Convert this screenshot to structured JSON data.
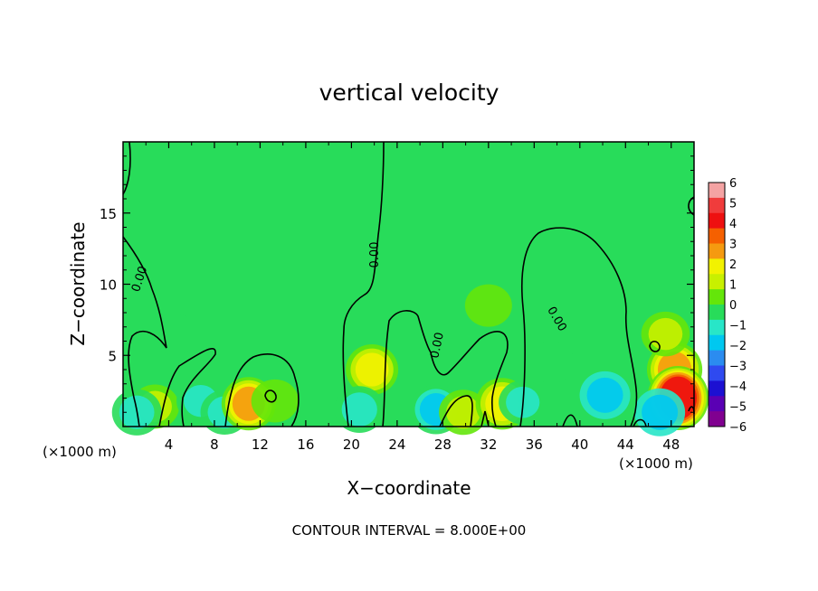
{
  "chart_data": {
    "type": "heatmap",
    "title": "vertical velocity",
    "xlabel": "X−coordinate",
    "ylabel": "Z−coordinate",
    "x_unit_left": "(×1000 m)",
    "x_unit_right": "(×1000 m)",
    "footer": "CONTOUR INTERVAL = 8.000E+00",
    "xlim": [
      0,
      50
    ],
    "ylim": [
      0,
      20
    ],
    "x_ticks": [
      4,
      8,
      12,
      16,
      20,
      24,
      28,
      32,
      36,
      40,
      44,
      48
    ],
    "y_ticks": [
      5,
      10,
      15
    ],
    "contour_labels": [
      "0.00",
      "0.00",
      "0.00",
      "0.00"
    ],
    "colorbar": {
      "ticks": [
        "6",
        "5",
        "4",
        "3",
        "2",
        "1",
        "0",
        "−1",
        "−2",
        "−3",
        "−4",
        "−5",
        "−6"
      ],
      "colors": [
        "#f4a3a3",
        "#f03c3c",
        "#ee1010",
        "#f56000",
        "#f59a10",
        "#f2f200",
        "#c8f000",
        "#64e60a",
        "#28dc5a",
        "#28e6c8",
        "#00c8f0",
        "#2b8cf0",
        "#2f4af0",
        "#1c10d2",
        "#5a00b4",
        "#800090"
      ]
    },
    "background_value": 0,
    "features": [
      {
        "x": 2.8,
        "y": 1.4,
        "w": 0.8
      },
      {
        "x": 1.2,
        "y": 1.0,
        "w": -1.2
      },
      {
        "x": 6.8,
        "y": 1.8,
        "w": -0.9
      },
      {
        "x": 8.9,
        "y": 1.0,
        "w": -0.9
      },
      {
        "x": 11.0,
        "y": 1.6,
        "w": 2.5
      },
      {
        "x": 13.3,
        "y": 1.8,
        "w": 0.6
      },
      {
        "x": 21.8,
        "y": 4.0,
        "w": 2.0
      },
      {
        "x": 20.7,
        "y": 1.2,
        "w": -1.3
      },
      {
        "x": 27.4,
        "y": 1.2,
        "w": -1.8
      },
      {
        "x": 29.8,
        "y": 1.0,
        "w": 1.0
      },
      {
        "x": 33.2,
        "y": 1.6,
        "w": 2.2
      },
      {
        "x": 35.0,
        "y": 1.7,
        "w": -0.8
      },
      {
        "x": 42.2,
        "y": 2.2,
        "w": -1.5
      },
      {
        "x": 48.3,
        "y": 4.0,
        "w": 2.8
      },
      {
        "x": 48.6,
        "y": 2.0,
        "w": 4.5
      },
      {
        "x": 47.0,
        "y": 1.0,
        "w": -1.5
      },
      {
        "x": 47.5,
        "y": 6.5,
        "w": 0.9
      },
      {
        "x": 32.0,
        "y": 8.5,
        "w": 0.5
      },
      {
        "x": 4.5,
        "y": 6.5,
        "w": -0.3
      },
      {
        "x": 37.5,
        "y": 4.5,
        "w": -0.3
      }
    ]
  }
}
